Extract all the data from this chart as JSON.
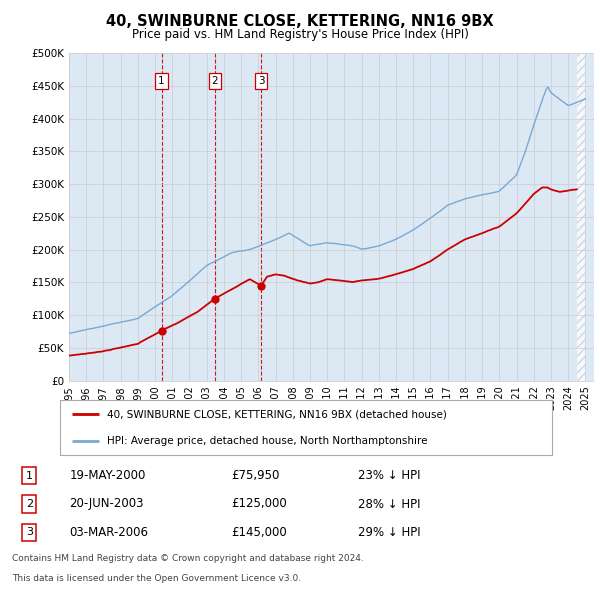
{
  "title": "40, SWINBURNE CLOSE, KETTERING, NN16 9BX",
  "subtitle": "Price paid vs. HM Land Registry's House Price Index (HPI)",
  "ylabel_labels": [
    "£0",
    "£50K",
    "£100K",
    "£150K",
    "£200K",
    "£250K",
    "£300K",
    "£350K",
    "£400K",
    "£450K",
    "£500K"
  ],
  "ylabel_values": [
    0,
    50000,
    100000,
    150000,
    200000,
    250000,
    300000,
    350000,
    400000,
    450000,
    500000
  ],
  "ylim": [
    0,
    500000
  ],
  "xlim_start": 1995.0,
  "xlim_end": 2025.5,
  "transactions": [
    {
      "label": "1",
      "date_str": "19-MAY-2000",
      "year": 2000.38,
      "price": 75950,
      "pct": "23% ↓ HPI"
    },
    {
      "label": "2",
      "date_str": "20-JUN-2003",
      "year": 2003.47,
      "price": 125000,
      "pct": "28% ↓ HPI"
    },
    {
      "label": "3",
      "date_str": "03-MAR-2006",
      "year": 2006.17,
      "price": 145000,
      "pct": "29% ↓ HPI"
    }
  ],
  "legend_line1": "40, SWINBURNE CLOSE, KETTERING, NN16 9BX (detached house)",
  "legend_line2": "HPI: Average price, detached house, North Northamptonshire",
  "footer1": "Contains HM Land Registry data © Crown copyright and database right 2024.",
  "footer2": "This data is licensed under the Open Government Licence v3.0.",
  "red_color": "#cc0000",
  "blue_color": "#7aa8d2",
  "blue_fill": "#dce9f5",
  "background_color": "#ffffff",
  "grid_color": "#cccccc",
  "hatch_color": "#c0c8d0"
}
